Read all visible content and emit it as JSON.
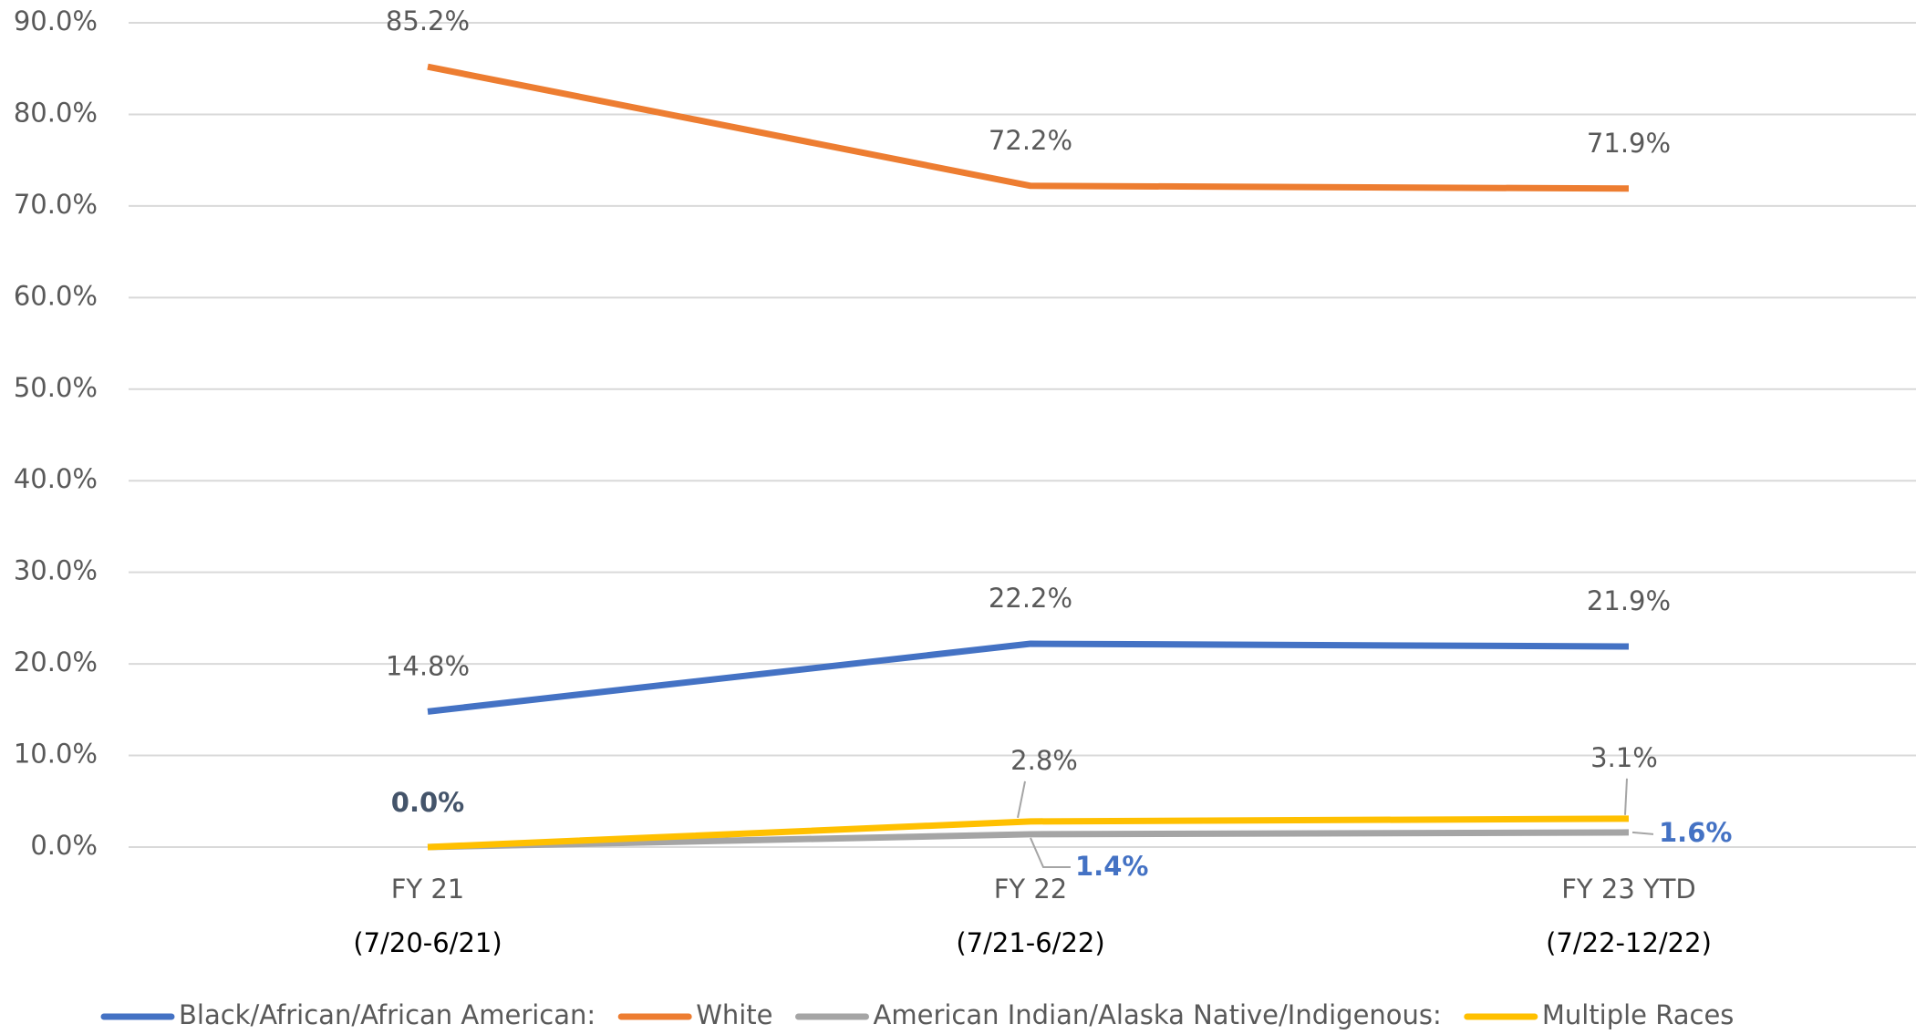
{
  "chart_data": {
    "type": "line",
    "categories": [
      "FY 21",
      "FY 22",
      "FY 23 YTD"
    ],
    "category_periods": [
      "(7/20-6/21)",
      "(7/21-6/22)",
      "(7/22-12/22)"
    ],
    "series": [
      {
        "name": "Black/African/African American:",
        "color": "#4472c4",
        "values": [
          14.8,
          22.2,
          21.9
        ],
        "value_labels": [
          "14.8%",
          "22.2%",
          "21.9%"
        ]
      },
      {
        "name": "White",
        "color": "#ed7d31",
        "values": [
          85.2,
          72.2,
          71.9
        ],
        "value_labels": [
          "85.2%",
          "72.2%",
          "71.9%"
        ]
      },
      {
        "name": "American Indian/Alaska Native/Indigenous:",
        "color": "#a5a5a5",
        "values": [
          0.0,
          1.4,
          1.6
        ],
        "value_labels": [
          "0.0%",
          "1.4%",
          "1.6%"
        ]
      },
      {
        "name": "Multiple Races",
        "color": "#ffc000",
        "values": [
          0.0,
          2.8,
          3.1
        ],
        "value_labels": [
          null,
          "2.8%",
          "3.1%"
        ]
      }
    ],
    "ylim": [
      0,
      90
    ],
    "yticks": [
      {
        "value": 0,
        "label": "0.0%"
      },
      {
        "value": 10,
        "label": "10.0%"
      },
      {
        "value": 20,
        "label": "20.0%"
      },
      {
        "value": 30,
        "label": "30.0%"
      },
      {
        "value": 40,
        "label": "40.0%"
      },
      {
        "value": 50,
        "label": "50.0%"
      },
      {
        "value": 60,
        "label": "60.0%"
      },
      {
        "value": 70,
        "label": "70.0%"
      },
      {
        "value": 80,
        "label": "80.0%"
      },
      {
        "value": 90,
        "label": "90.0%"
      }
    ],
    "grid": true,
    "legend": "bottom"
  }
}
